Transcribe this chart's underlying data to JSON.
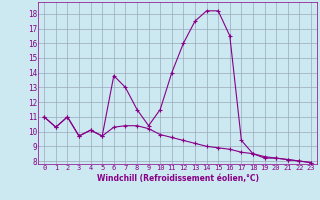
{
  "xlabel": "Windchill (Refroidissement éolien,°C)",
  "background_color": "#cce8f0",
  "line_color": "#880088",
  "grid_color": "#99aabb",
  "xlim": [
    -0.5,
    23.5
  ],
  "ylim": [
    7.8,
    18.8
  ],
  "xticks": [
    0,
    1,
    2,
    3,
    4,
    5,
    6,
    7,
    8,
    9,
    10,
    11,
    12,
    13,
    14,
    15,
    16,
    17,
    18,
    19,
    20,
    21,
    22,
    23
  ],
  "yticks": [
    8,
    9,
    10,
    11,
    12,
    13,
    14,
    15,
    16,
    17,
    18
  ],
  "curve1_x": [
    0,
    1,
    2,
    3,
    4,
    5,
    6,
    7,
    8,
    9,
    10,
    11,
    12,
    13,
    14,
    15,
    16,
    17,
    18,
    19,
    20,
    21,
    22,
    23
  ],
  "curve1_y": [
    11.0,
    10.3,
    11.0,
    9.7,
    10.1,
    9.7,
    13.8,
    13.0,
    11.5,
    10.4,
    11.5,
    14.0,
    16.0,
    17.5,
    18.2,
    18.2,
    16.5,
    9.4,
    8.5,
    8.2,
    8.2,
    8.1,
    8.0,
    7.9
  ],
  "curve2_x": [
    0,
    1,
    2,
    3,
    4,
    5,
    6,
    7,
    8,
    9,
    10,
    11,
    12,
    13,
    14,
    15,
    16,
    17,
    18,
    19,
    20,
    21,
    22,
    23
  ],
  "curve2_y": [
    11.0,
    10.3,
    11.0,
    9.7,
    10.1,
    9.7,
    10.3,
    10.4,
    10.4,
    10.2,
    9.8,
    9.6,
    9.4,
    9.2,
    9.0,
    8.9,
    8.8,
    8.6,
    8.5,
    8.3,
    8.2,
    8.1,
    8.0,
    7.9
  ]
}
